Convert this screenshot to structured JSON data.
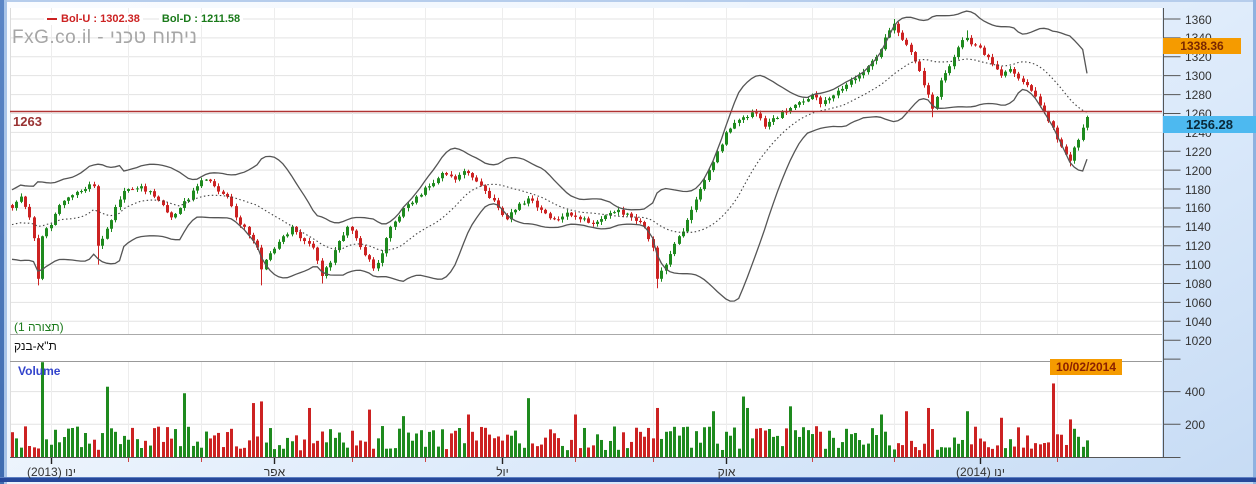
{
  "header": {
    "legend": {
      "bol_u": {
        "text": "Bol-U : 1302.38"
      },
      "bol_d": {
        "text": "Bol-D : 1211.58"
      }
    },
    "watermark": "FxG.co.il - ניתוח טכני"
  },
  "labels": {
    "config": "(תצורה 1)",
    "instrument": "ת\"א-בנק",
    "volume": "Volume"
  },
  "badges": {
    "high": "1338.36",
    "last": "1256.28",
    "date": "10/02/2014"
  },
  "ref_line": {
    "label": "1263",
    "value": 1263
  },
  "colors": {
    "up": "#1e8a1e",
    "down": "#cc2222",
    "band": "#555555",
    "band_mid": "#444444",
    "grid": "#e3e3e3",
    "vgrid": "#ededed",
    "axis": "#555555",
    "ref_line": "#b03333",
    "ref_text": "#993333",
    "legend_u": "#cc2222",
    "legend_d": "#1a7a1a",
    "badge_orange": "#f59b00",
    "badge_orange_text": "#7a2800",
    "badge_blue": "#4db9f0",
    "badge_blue_text": "#0a2a3a",
    "config_text": "#1a7a1a",
    "volume_text": "#3344cc",
    "watermark": "#a6a6a6"
  },
  "chart_data": {
    "type": "candlestick+volume",
    "title": "ת\"א-בנק",
    "indicator": "Bollinger Bands",
    "bollinger_upper_last": 1302.38,
    "bollinger_lower_last": 1211.58,
    "last_close": 1256.28,
    "last_date": "10/02/2014",
    "ref_level": 1263,
    "high_marker": 1338.36,
    "y_axis": {
      "ticks": [
        1360,
        1340,
        1320,
        1300,
        1280,
        1260,
        1240,
        1220,
        1200,
        1180,
        1160,
        1140,
        1120,
        1100,
        1080,
        1060,
        1040,
        1020
      ],
      "extra_unlabeled_tick": 1000,
      "ylim": [
        1015,
        1372
      ]
    },
    "volume_axis": {
      "ticks": [
        400,
        200
      ],
      "ylim": [
        0,
        590
      ]
    },
    "x_axis": {
      "month_tick_indices": [
        9,
        27,
        44,
        61,
        79,
        96,
        114,
        131,
        149,
        166,
        186,
        205,
        225,
        243
      ],
      "labels": [
        {
          "text": "ינו (2013)",
          "i": 9
        },
        {
          "text": "אפר",
          "i": 61
        },
        {
          "text": "יול",
          "i": 114
        },
        {
          "text": "אוק",
          "i": 166
        },
        {
          "text": "ינו (2014)",
          "i": 225
        }
      ]
    },
    "n": 251,
    "close_anchors": [
      [
        0,
        1160
      ],
      [
        2,
        1172
      ],
      [
        4,
        1150
      ],
      [
        5,
        1128
      ],
      [
        6,
        1085
      ],
      [
        7,
        1130
      ],
      [
        9,
        1142
      ],
      [
        11,
        1163
      ],
      [
        15,
        1177
      ],
      [
        18,
        1185
      ],
      [
        19,
        1183
      ],
      [
        20,
        1120
      ],
      [
        22,
        1138
      ],
      [
        26,
        1178
      ],
      [
        30,
        1183
      ],
      [
        33,
        1172
      ],
      [
        37,
        1150
      ],
      [
        39,
        1160
      ],
      [
        43,
        1183
      ],
      [
        45,
        1190
      ],
      [
        47,
        1183
      ],
      [
        50,
        1172
      ],
      [
        52,
        1150
      ],
      [
        54,
        1140
      ],
      [
        57,
        1118
      ],
      [
        58,
        1095
      ],
      [
        60,
        1112
      ],
      [
        63,
        1130
      ],
      [
        65,
        1140
      ],
      [
        67,
        1128
      ],
      [
        70,
        1118
      ],
      [
        72,
        1088
      ],
      [
        74,
        1102
      ],
      [
        76,
        1125
      ],
      [
        78,
        1140
      ],
      [
        80,
        1128
      ],
      [
        82,
        1110
      ],
      [
        84,
        1096
      ],
      [
        86,
        1112
      ],
      [
        88,
        1140
      ],
      [
        91,
        1160
      ],
      [
        94,
        1172
      ],
      [
        97,
        1183
      ],
      [
        100,
        1197
      ],
      [
        103,
        1190
      ],
      [
        105,
        1199
      ],
      [
        108,
        1188
      ],
      [
        110,
        1178
      ],
      [
        112,
        1168
      ],
      [
        115,
        1148
      ],
      [
        117,
        1158
      ],
      [
        120,
        1170
      ],
      [
        123,
        1158
      ],
      [
        126,
        1148
      ],
      [
        129,
        1155
      ],
      [
        132,
        1148
      ],
      [
        135,
        1143
      ],
      [
        138,
        1152
      ],
      [
        141,
        1158
      ],
      [
        144,
        1150
      ],
      [
        147,
        1140
      ],
      [
        149,
        1118
      ],
      [
        150,
        1085
      ],
      [
        152,
        1100
      ],
      [
        154,
        1122
      ],
      [
        156,
        1135
      ],
      [
        158,
        1158
      ],
      [
        160,
        1180
      ],
      [
        162,
        1200
      ],
      [
        164,
        1220
      ],
      [
        166,
        1240
      ],
      [
        168,
        1250
      ],
      [
        170,
        1256
      ],
      [
        173,
        1260
      ],
      [
        175,
        1246
      ],
      [
        177,
        1255
      ],
      [
        180,
        1262
      ],
      [
        183,
        1272
      ],
      [
        186,
        1280
      ],
      [
        188,
        1270
      ],
      [
        190,
        1276
      ],
      [
        193,
        1286
      ],
      [
        196,
        1297
      ],
      [
        199,
        1310
      ],
      [
        202,
        1328
      ],
      [
        204,
        1348
      ],
      [
        205,
        1355
      ],
      [
        207,
        1338
      ],
      [
        209,
        1325
      ],
      [
        211,
        1305
      ],
      [
        213,
        1280
      ],
      [
        214,
        1265
      ],
      [
        216,
        1295
      ],
      [
        218,
        1310
      ],
      [
        220,
        1330
      ],
      [
        222,
        1340
      ],
      [
        224,
        1332
      ],
      [
        226,
        1322
      ],
      [
        228,
        1312
      ],
      [
        230,
        1300
      ],
      [
        232,
        1307
      ],
      [
        234,
        1297
      ],
      [
        236,
        1290
      ],
      [
        238,
        1278
      ],
      [
        240,
        1262
      ],
      [
        242,
        1245
      ],
      [
        244,
        1225
      ],
      [
        246,
        1210
      ],
      [
        248,
        1232
      ],
      [
        250,
        1256.28
      ]
    ],
    "wick_low_overrides": [
      [
        6,
        1078
      ],
      [
        20,
        1100
      ],
      [
        58,
        1078
      ],
      [
        72,
        1080
      ],
      [
        150,
        1075
      ],
      [
        214,
        1256
      ],
      [
        246,
        1204
      ]
    ],
    "wick_high_overrides": [
      [
        205,
        1360
      ],
      [
        222,
        1348
      ]
    ],
    "volume_spikes": [
      [
        7,
        580
      ],
      [
        22,
        430
      ],
      [
        40,
        390
      ],
      [
        56,
        330
      ],
      [
        58,
        340
      ],
      [
        69,
        300
      ],
      [
        83,
        290
      ],
      [
        91,
        250
      ],
      [
        106,
        260
      ],
      [
        120,
        360
      ],
      [
        131,
        260
      ],
      [
        150,
        300
      ],
      [
        163,
        280
      ],
      [
        170,
        370
      ],
      [
        171,
        300
      ],
      [
        181,
        310
      ],
      [
        202,
        260
      ],
      [
        208,
        280
      ],
      [
        213,
        300
      ],
      [
        222,
        280
      ],
      [
        230,
        240
      ],
      [
        242,
        450
      ],
      [
        246,
        230
      ]
    ],
    "volume_base_range": [
      40,
      190
    ],
    "band_period": 20,
    "band_mult": 2,
    "warmup_level": 1140
  }
}
